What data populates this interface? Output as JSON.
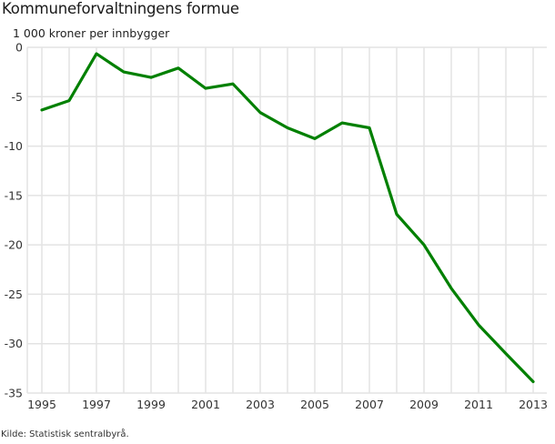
{
  "header": {
    "title": "Kommuneforvaltningens formue",
    "unit_label": "1 000 kroner per innbygger"
  },
  "footer": {
    "source": "Kilde: Statistisk sentralbyrå."
  },
  "colors": {
    "line": "#008000",
    "grid": "#e3e3e3",
    "text": "#333333",
    "background": "#ffffff"
  },
  "chart_data": {
    "type": "line",
    "title": "Kommuneforvaltningens formue",
    "xlabel": "",
    "ylabel": "1 000 kroner per innbygger",
    "x": [
      1995,
      1996,
      1997,
      1998,
      1999,
      2000,
      2001,
      2002,
      2003,
      2004,
      2005,
      2006,
      2007,
      2008,
      2009,
      2010,
      2011,
      2012,
      2013
    ],
    "series": [
      {
        "name": "Kommuneforvaltningens formue",
        "color": "#008000",
        "values": [
          -6.35,
          -5.4,
          -0.65,
          -2.5,
          -3.05,
          -2.1,
          -4.15,
          -3.7,
          -6.6,
          -8.15,
          -9.25,
          -7.65,
          -8.15,
          -16.9,
          -20.0,
          -24.4,
          -28.1,
          -31.0,
          -33.85
        ]
      }
    ],
    "ylim": [
      -35,
      0
    ],
    "yticks": [
      0,
      -5,
      -10,
      -15,
      -20,
      -25,
      -30,
      -35
    ],
    "xticks": [
      1995,
      1997,
      1999,
      2001,
      2003,
      2005,
      2007,
      2009,
      2011,
      2013
    ],
    "grid": true,
    "legend": null,
    "source": "Kilde: Statistisk sentralbyrå."
  }
}
